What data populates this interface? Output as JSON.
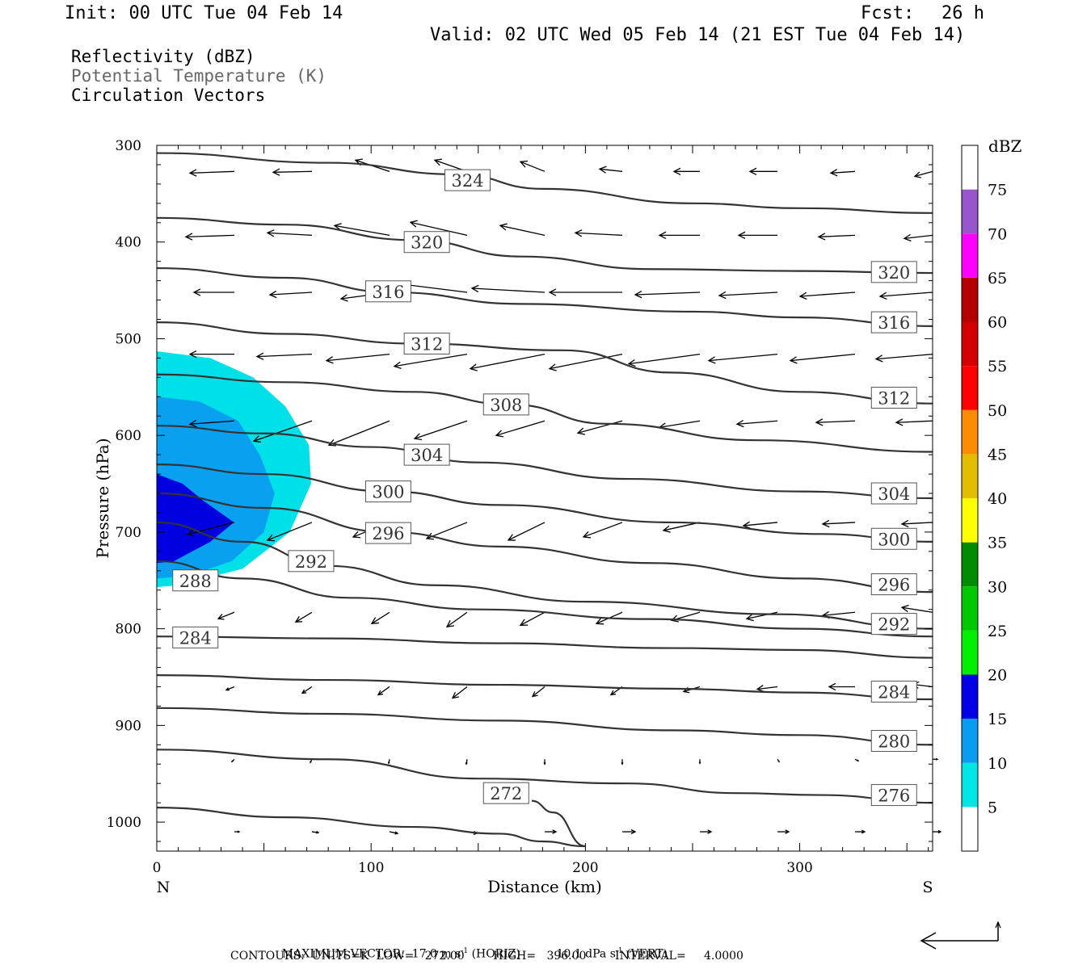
{
  "header": {
    "init": "Init: 00 UTC Tue 04 Feb 14",
    "fcst_label": "Fcst:",
    "fcst_value": "26 h",
    "valid": "Valid: 02 UTC Wed 05 Feb 14 (21 EST Tue 04 Feb 14)"
  },
  "legend_text": {
    "line1": "Reflectivity (dBZ)",
    "line2": "Potential Temperature (K)",
    "line3": "Circulation Vectors"
  },
  "colors": {
    "refl_10": "#00e0e8",
    "refl_15": "#0aa0f0",
    "refl_20": "#0000e0",
    "contour": "#333333",
    "legend_gray": "#666666"
  },
  "footer": {
    "max_vector_label": "MAXIMUM VECTOR:",
    "max_h": "17.0 m s",
    "max_h_unit": "(HORIZ)",
    "max_v": "10.1 dPa s",
    "max_v_unit": "(VERT)",
    "exp": "-1",
    "contours": "CONTOURS:  UNITS=K  LOW=   272.00        HIGH=   396.00        INTERVAL=     4.0000"
  },
  "chart_data": {
    "type": "contour",
    "xlabel": "Distance (km)",
    "ylabel": "Pressure (hPa)",
    "xlim": [
      0,
      362
    ],
    "ylim": [
      1030,
      300
    ],
    "x_ticks": [
      0,
      100,
      200,
      300
    ],
    "y_ticks": [
      300,
      400,
      500,
      600,
      700,
      800,
      900,
      1000
    ],
    "left_end_label": "N",
    "right_end_label": "S",
    "colorbar": {
      "title": "dBZ",
      "levels": [
        5,
        10,
        15,
        20,
        25,
        30,
        35,
        40,
        45,
        50,
        55,
        60,
        65,
        70,
        75
      ],
      "colors": [
        "#ffffff",
        "#00e6e6",
        "#0a9cf0",
        "#0000e6",
        "#00ee00",
        "#00c800",
        "#008c00",
        "#ffff00",
        "#e6bc00",
        "#ff8c00",
        "#ff0000",
        "#d40000",
        "#b40000",
        "#ff00ff",
        "#9955cc",
        "#ffffff"
      ]
    },
    "reflectivity_regions": [
      {
        "level": 5,
        "points": [
          [
            0,
            513
          ],
          [
            25,
            520
          ],
          [
            45,
            540
          ],
          [
            60,
            570
          ],
          [
            71,
            610
          ],
          [
            72,
            650
          ],
          [
            62,
            700
          ],
          [
            40,
            738
          ],
          [
            10,
            755
          ],
          [
            0,
            757
          ]
        ]
      },
      {
        "level": 10,
        "points": [
          [
            0,
            560
          ],
          [
            20,
            565
          ],
          [
            38,
            585
          ],
          [
            48,
            620
          ],
          [
            55,
            660
          ],
          [
            50,
            700
          ],
          [
            35,
            730
          ],
          [
            15,
            745
          ],
          [
            0,
            748
          ]
        ]
      },
      {
        "level": 15,
        "points": [
          [
            0,
            640
          ],
          [
            12,
            650
          ],
          [
            22,
            668
          ],
          [
            36,
            690
          ],
          [
            25,
            710
          ],
          [
            8,
            730
          ],
          [
            0,
            732
          ]
        ]
      }
    ],
    "theta_contours": [
      {
        "value": 324,
        "label": "324",
        "label_x": 145,
        "label_p": 336,
        "points": [
          [
            0,
            308
          ],
          [
            80,
            318
          ],
          [
            140,
            330
          ],
          [
            180,
            345
          ],
          [
            250,
            360
          ],
          [
            300,
            365
          ],
          [
            362,
            370
          ]
        ]
      },
      {
        "value": 320,
        "label": "320",
        "label_x": 126,
        "label_p": 400,
        "points": [
          [
            0,
            375
          ],
          [
            60,
            382
          ],
          [
            120,
            398
          ],
          [
            170,
            415
          ],
          [
            230,
            428
          ],
          [
            300,
            430
          ],
          [
            362,
            432
          ]
        ]
      },
      {
        "value": 320,
        "label": "320",
        "label_x": 344,
        "label_p": 431,
        "points": []
      },
      {
        "value": 316,
        "label": "316",
        "label_x": 108,
        "label_p": 451,
        "points": [
          [
            0,
            427
          ],
          [
            60,
            437
          ],
          [
            110,
            452
          ],
          [
            170,
            464
          ],
          [
            250,
            472
          ],
          [
            300,
            478
          ],
          [
            362,
            487
          ]
        ]
      },
      {
        "value": 316,
        "label": "316",
        "label_x": 344,
        "label_p": 483,
        "points": []
      },
      {
        "value": 312,
        "label": "312",
        "label_x": 126,
        "label_p": 505,
        "points": [
          [
            0,
            483
          ],
          [
            60,
            495
          ],
          [
            120,
            505
          ],
          [
            190,
            512
          ],
          [
            240,
            535
          ],
          [
            300,
            555
          ],
          [
            362,
            567
          ]
        ]
      },
      {
        "value": 312,
        "label": "312",
        "label_x": 344,
        "label_p": 561,
        "points": []
      },
      {
        "value": 308,
        "label": "308",
        "label_x": 163,
        "label_p": 568,
        "points": [
          [
            0,
            537
          ],
          [
            60,
            545
          ],
          [
            120,
            555
          ],
          [
            165,
            568
          ],
          [
            210,
            588
          ],
          [
            280,
            605
          ],
          [
            362,
            617
          ]
        ]
      },
      {
        "value": 304,
        "label": "304",
        "label_x": 126,
        "label_p": 620,
        "points": [
          [
            0,
            590
          ],
          [
            50,
            598
          ],
          [
            100,
            612
          ],
          [
            150,
            628
          ],
          [
            220,
            645
          ],
          [
            300,
            658
          ],
          [
            362,
            665
          ]
        ]
      },
      {
        "value": 304,
        "label": "304",
        "label_x": 344,
        "label_p": 660,
        "points": []
      },
      {
        "value": 300,
        "label": "300",
        "label_x": 108,
        "label_p": 658,
        "points": [
          [
            0,
            630
          ],
          [
            50,
            640
          ],
          [
            108,
            658
          ],
          [
            160,
            672
          ],
          [
            240,
            690
          ],
          [
            310,
            702
          ],
          [
            362,
            710
          ]
        ]
      },
      {
        "value": 300,
        "label": "300",
        "label_x": 344,
        "label_p": 707,
        "points": []
      },
      {
        "value": 296,
        "label": "296",
        "label_x": 108,
        "label_p": 701,
        "points": [
          [
            0,
            660
          ],
          [
            50,
            675
          ],
          [
            108,
            700
          ],
          [
            160,
            715
          ],
          [
            230,
            732
          ],
          [
            300,
            748
          ],
          [
            362,
            762
          ]
        ]
      },
      {
        "value": 296,
        "label": "296",
        "label_x": 344,
        "label_p": 754,
        "points": []
      },
      {
        "value": 292,
        "label": "292",
        "label_x": 72,
        "label_p": 730,
        "points": [
          [
            0,
            690
          ],
          [
            40,
            710
          ],
          [
            80,
            735
          ],
          [
            130,
            755
          ],
          [
            200,
            772
          ],
          [
            290,
            785
          ],
          [
            362,
            800
          ]
        ]
      },
      {
        "value": 292,
        "label": "292",
        "label_x": 344,
        "label_p": 795,
        "points": []
      },
      {
        "value": 288,
        "label": "288",
        "label_x": 18,
        "label_p": 750,
        "points": [
          [
            0,
            730
          ],
          [
            40,
            748
          ],
          [
            90,
            768
          ],
          [
            150,
            780
          ],
          [
            230,
            790
          ],
          [
            300,
            800
          ],
          [
            362,
            808
          ]
        ]
      },
      {
        "value": 284,
        "label": "284",
        "label_x": 18,
        "label_p": 809,
        "points": [
          [
            0,
            808
          ],
          [
            80,
            810
          ],
          [
            160,
            815
          ],
          [
            240,
            820
          ],
          [
            300,
            822
          ],
          [
            362,
            830
          ]
        ]
      },
      {
        "value": 284,
        "label": "284",
        "label_x": 344,
        "label_p": 865,
        "points": [
          [
            0,
            848
          ],
          [
            80,
            853
          ],
          [
            160,
            858
          ],
          [
            240,
            862
          ],
          [
            300,
            866
          ],
          [
            362,
            873
          ]
        ]
      },
      {
        "value": 280,
        "label": "280",
        "label_x": 344,
        "label_p": 916,
        "points": [
          [
            0,
            882
          ],
          [
            80,
            888
          ],
          [
            160,
            895
          ],
          [
            240,
            905
          ],
          [
            300,
            910
          ],
          [
            362,
            920
          ]
        ]
      },
      {
        "value": 276,
        "label": "276",
        "label_x": 344,
        "label_p": 972,
        "points": [
          [
            0,
            925
          ],
          [
            80,
            935
          ],
          [
            150,
            955
          ],
          [
            220,
            960
          ],
          [
            270,
            970
          ],
          [
            310,
            972
          ],
          [
            362,
            980
          ]
        ]
      },
      {
        "value": 272,
        "label": "272",
        "label_x": 163,
        "label_p": 970,
        "points": [
          [
            0,
            985
          ],
          [
            60,
            995
          ],
          [
            120,
            1005
          ],
          [
            160,
            1012
          ],
          [
            180,
            1020
          ],
          [
            200,
            1025
          ]
        ]
      },
      {
        "value": 272,
        "label": "",
        "label_x": 0,
        "label_p": 0,
        "points": [
          [
            175,
            978
          ],
          [
            185,
            990
          ],
          [
            200,
            1025
          ]
        ]
      }
    ]
  }
}
